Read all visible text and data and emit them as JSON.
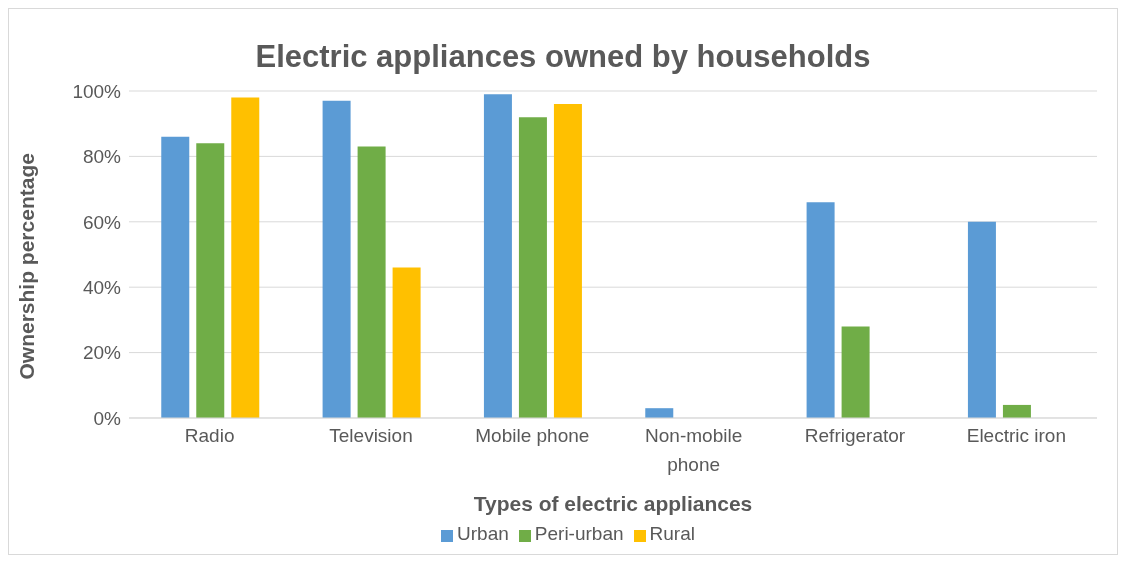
{
  "chart_data": {
    "type": "bar",
    "title": "Electric appliances owned by households",
    "xlabel": "Types of electric appliances",
    "ylabel": "Ownership percentage",
    "categories": [
      "Radio",
      "Television",
      "Mobile phone",
      "Non-mobile phone",
      "Refrigerator",
      "Electric iron"
    ],
    "series": [
      {
        "name": "Urban",
        "color": "#5b9bd5",
        "values": [
          86,
          97,
          99,
          3,
          66,
          60
        ]
      },
      {
        "name": "Peri-urban",
        "color": "#70ad47",
        "values": [
          84,
          83,
          92,
          0,
          28,
          4
        ]
      },
      {
        "name": "Rural",
        "color": "#ffc000",
        "values": [
          98,
          46,
          96,
          0,
          0,
          0
        ]
      }
    ],
    "ylim": [
      0,
      100
    ],
    "yticks": [
      {
        "value": 0,
        "label": "0%"
      },
      {
        "value": 20,
        "label": "20%"
      },
      {
        "value": 40,
        "label": "40%"
      },
      {
        "value": 60,
        "label": "60%"
      },
      {
        "value": 80,
        "label": "80%"
      },
      {
        "value": 100,
        "label": "100%"
      }
    ],
    "grid": "y",
    "legend": "bottom"
  }
}
